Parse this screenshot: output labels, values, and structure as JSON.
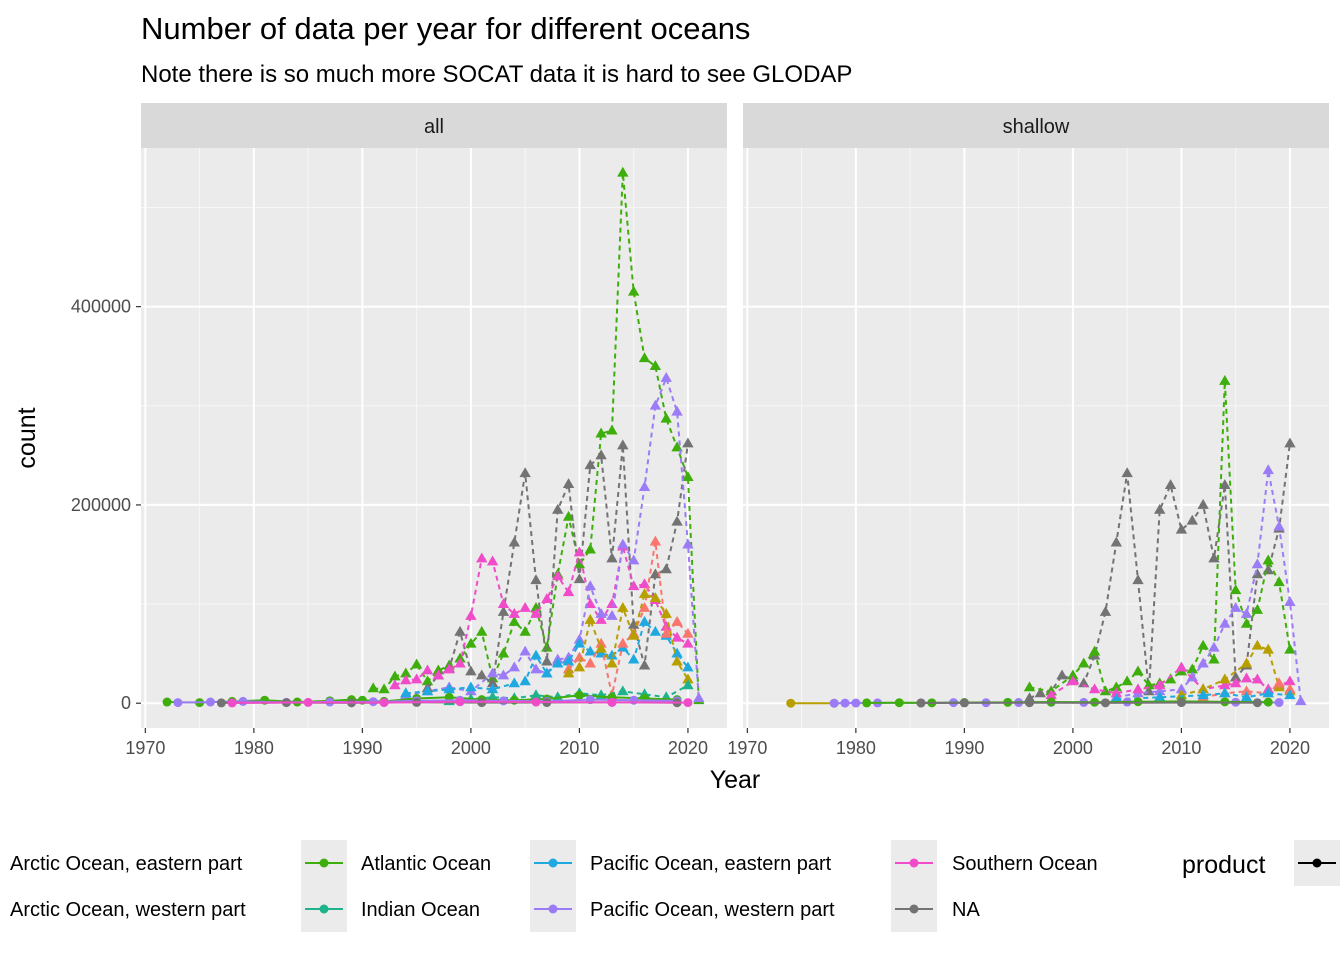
{
  "chart_data": {
    "type": "line",
    "title": "Number of data per year for different oceans",
    "subtitle": "Note there is so much more SOCAT data it is hard to see GLODAP",
    "xlabel": "Year",
    "ylabel": "count",
    "xlim": [
      1969.6,
      2023.6
    ],
    "ylim": [
      -25000,
      560000
    ],
    "x_ticks": [
      1970,
      1980,
      1990,
      2000,
      2010,
      2020
    ],
    "x_tick_labels": [
      "1970",
      "1980",
      "1990",
      "2000",
      "2010",
      "2020"
    ],
    "y_ticks": [
      0,
      200000,
      400000
    ],
    "y_tick_labels": [
      "0",
      "200000",
      "400000"
    ],
    "grid": true,
    "facets": [
      "all",
      "shallow"
    ],
    "legend": {
      "position": "bottom",
      "colour_entries": [
        {
          "name": "Arctic Ocean, eastern part",
          "color": "#F8766D"
        },
        {
          "name": "Arctic Ocean, western part",
          "color": "#B79F00"
        },
        {
          "name": "Atlantic Ocean",
          "color": "#3DAE0B"
        },
        {
          "name": "Indian Ocean",
          "color": "#1EB38C"
        },
        {
          "name": "Pacific Ocean, eastern part",
          "color": "#1FA9E0"
        },
        {
          "name": "Pacific Ocean, western part",
          "color": "#9C7CF6"
        },
        {
          "name": "Southern Ocean",
          "color": "#F04BC8"
        },
        {
          "name": "NA",
          "color": "#737373"
        }
      ],
      "product_title": "product"
    },
    "series": [
      {
        "name": "Atlantic Ocean",
        "facet": "all",
        "product": "dashed-triangle",
        "color": "#3DAE0B",
        "x": [
          1991,
          1992,
          1993,
          1994,
          1995,
          1996,
          1997,
          1998,
          1999,
          2000,
          2001,
          2002,
          2003,
          2004,
          2005,
          2006,
          2007,
          2008,
          2009,
          2010,
          2011,
          2012,
          2013,
          2014,
          2015,
          2016,
          2017,
          2018,
          2019,
          2020,
          2021
        ],
        "y": [
          15000,
          14000,
          27000,
          30000,
          39000,
          22000,
          33000,
          38000,
          45000,
          60000,
          72000,
          25000,
          50000,
          82000,
          72000,
          96000,
          56000,
          130000,
          188000,
          140000,
          155000,
          272000,
          275000,
          535000,
          415000,
          348000,
          340000,
          287000,
          258000,
          228000,
          3000
        ]
      },
      {
        "name": "NA",
        "facet": "all",
        "product": "dashed-triangle",
        "color": "#737373",
        "x": [
          1996,
          1997,
          1998,
          1999,
          2000,
          2001,
          2002,
          2003,
          2004,
          2005,
          2006,
          2007,
          2008,
          2009,
          2010,
          2011,
          2012,
          2013,
          2014,
          2015,
          2016,
          2017,
          2018,
          2019,
          2020
        ],
        "y": [
          15000,
          28000,
          35000,
          72000,
          32000,
          28000,
          20000,
          92000,
          162000,
          232000,
          124000,
          42000,
          195000,
          221000,
          125000,
          240000,
          250000,
          146000,
          260000,
          79000,
          38000,
          130000,
          135000,
          183000,
          262000
        ]
      },
      {
        "name": "Southern Ocean",
        "facet": "all",
        "product": "dashed-triangle",
        "color": "#F04BC8",
        "x": [
          1993,
          1994,
          1995,
          1996,
          1997,
          1998,
          1999,
          2000,
          2001,
          2002,
          2003,
          2004,
          2005,
          2006,
          2007,
          2008,
          2009,
          2010,
          2011,
          2012,
          2013,
          2014,
          2015,
          2016,
          2017,
          2018,
          2019,
          2020
        ],
        "y": [
          18000,
          23000,
          24000,
          33000,
          28000,
          34000,
          40000,
          88000,
          146000,
          143000,
          100000,
          90000,
          96000,
          90000,
          105000,
          128000,
          112000,
          152000,
          100000,
          84000,
          100000,
          158000,
          118000,
          120000,
          104000,
          77000,
          66000,
          60000
        ]
      },
      {
        "name": "Pacific Ocean, western part",
        "facet": "all",
        "product": "dashed-triangle",
        "color": "#9C7CF6",
        "x": [
          1994,
          1996,
          1998,
          2000,
          2002,
          2003,
          2004,
          2005,
          2006,
          2007,
          2008,
          2009,
          2010,
          2011,
          2012,
          2013,
          2014,
          2015,
          2016,
          2017,
          2018,
          2019,
          2020,
          2021
        ],
        "y": [
          8000,
          12000,
          16000,
          12000,
          30000,
          28000,
          36000,
          52000,
          34000,
          30000,
          44000,
          46000,
          64000,
          118000,
          90000,
          88000,
          160000,
          144000,
          218000,
          300000,
          328000,
          294000,
          160000,
          5000
        ]
      },
      {
        "name": "Pacific Ocean, eastern part",
        "facet": "all",
        "product": "dashed-triangle",
        "color": "#1FA9E0",
        "x": [
          1994,
          1996,
          1998,
          2000,
          2002,
          2004,
          2005,
          2006,
          2007,
          2008,
          2009,
          2010,
          2011,
          2012,
          2013,
          2014,
          2015,
          2016,
          2017,
          2018,
          2019,
          2020
        ],
        "y": [
          10000,
          12000,
          14000,
          16000,
          14000,
          20000,
          22000,
          48000,
          30000,
          40000,
          42000,
          60000,
          52000,
          50000,
          48000,
          56000,
          44000,
          82000,
          72000,
          68000,
          50000,
          36000
        ]
      },
      {
        "name": "Arctic Ocean, eastern part",
        "facet": "all",
        "product": "dashed-triangle",
        "color": "#F8766D",
        "x": [
          2009,
          2010,
          2011,
          2012,
          2013,
          2014,
          2015,
          2016,
          2017,
          2018,
          2019,
          2020
        ],
        "y": [
          34000,
          46000,
          40000,
          60000,
          8000,
          60000,
          70000,
          96000,
          163000,
          70000,
          82000,
          70000
        ]
      },
      {
        "name": "Arctic Ocean, western part",
        "facet": "all",
        "product": "dashed-triangle",
        "color": "#B79F00",
        "x": [
          2009,
          2010,
          2011,
          2012,
          2013,
          2014,
          2015,
          2016,
          2017,
          2018,
          2019,
          2020
        ],
        "y": [
          30000,
          36000,
          84000,
          55000,
          40000,
          96000,
          68000,
          110000,
          106000,
          90000,
          42000,
          24000
        ]
      },
      {
        "name": "Indian Ocean",
        "facet": "all",
        "product": "dashed-triangle",
        "color": "#1EB38C",
        "x": [
          1998,
          2000,
          2002,
          2004,
          2006,
          2008,
          2010,
          2012,
          2014,
          2016,
          2018,
          2020
        ],
        "y": [
          2000,
          4000,
          6000,
          5000,
          8000,
          6000,
          10000,
          8000,
          12000,
          9000,
          6000,
          18000
        ]
      },
      {
        "name": "Atlantic Ocean",
        "facet": "all",
        "product": "solid-point",
        "color": "#3DAE0B",
        "x": [
          1972,
          1975,
          1978,
          1981,
          1984,
          1987,
          1989,
          1990,
          1992,
          1995,
          1998,
          2001,
          2004,
          2007,
          2010,
          2013,
          2016,
          2019
        ],
        "y": [
          1200,
          600,
          1800,
          3000,
          1200,
          2400,
          3600,
          3000,
          1800,
          4800,
          6000,
          3600,
          3000,
          4200,
          8000,
          6000,
          4800,
          3600
        ]
      },
      {
        "name": "Pacific Ocean, western part",
        "facet": "all",
        "product": "solid-point",
        "color": "#9C7CF6",
        "x": [
          1973,
          1976,
          1979,
          1983,
          1987,
          1991,
          1995,
          1999,
          2003,
          2007,
          2011,
          2015,
          2019
        ],
        "y": [
          600,
          1200,
          1800,
          900,
          1200,
          1500,
          2400,
          3000,
          2400,
          1800,
          3600,
          3000,
          2400
        ]
      },
      {
        "name": "NA",
        "facet": "all",
        "product": "solid-point",
        "color": "#737373",
        "x": [
          1977,
          1983,
          1989,
          1995,
          2001,
          2007,
          2013,
          2019
        ],
        "y": [
          300,
          600,
          400,
          800,
          600,
          700,
          900,
          500
        ]
      },
      {
        "name": "Southern Ocean",
        "facet": "all",
        "product": "solid-point",
        "color": "#F04BC8",
        "x": [
          1978,
          1985,
          1992,
          1999,
          2006,
          2013,
          2020
        ],
        "y": [
          300,
          800,
          600,
          1500,
          1200,
          900,
          600
        ]
      },
      {
        "name": "NA",
        "facet": "shallow",
        "product": "dashed-triangle",
        "color": "#737373",
        "x": [
          1996,
          1997,
          1998,
          1999,
          2000,
          2001,
          2002,
          2003,
          2004,
          2005,
          2006,
          2007,
          2008,
          2009,
          2010,
          2011,
          2012,
          2013,
          2014,
          2015,
          2016,
          2017,
          2018,
          2019,
          2020
        ],
        "y": [
          5000,
          10000,
          12000,
          28000,
          24000,
          20000,
          48000,
          92000,
          162000,
          232000,
          124000,
          12000,
          195000,
          220000,
          175000,
          184000,
          200000,
          146000,
          220000,
          26000,
          38000,
          130000,
          134000,
          176000,
          262000
        ]
      },
      {
        "name": "Atlantic Ocean",
        "facet": "shallow",
        "product": "dashed-triangle",
        "color": "#3DAE0B",
        "x": [
          1996,
          1998,
          2000,
          2001,
          2002,
          2003,
          2004,
          2005,
          2006,
          2007,
          2008,
          2009,
          2010,
          2011,
          2012,
          2013,
          2014,
          2015,
          2016,
          2017,
          2018,
          2019,
          2020
        ],
        "y": [
          16000,
          12000,
          28000,
          40000,
          52000,
          12000,
          16000,
          22000,
          32000,
          18000,
          20000,
          24000,
          32000,
          34000,
          58000,
          44000,
          325000,
          114000,
          80000,
          94000,
          144000,
          122000,
          54000
        ]
      },
      {
        "name": "Pacific Ocean, western part",
        "facet": "shallow",
        "product": "dashed-triangle",
        "color": "#9C7CF6",
        "x": [
          2004,
          2006,
          2008,
          2010,
          2011,
          2012,
          2013,
          2014,
          2015,
          2016,
          2017,
          2018,
          2019,
          2020,
          2021
        ],
        "y": [
          6000,
          10000,
          12000,
          14000,
          26000,
          40000,
          56000,
          80000,
          96000,
          90000,
          140000,
          235000,
          178000,
          102000,
          2000
        ]
      },
      {
        "name": "Southern Ocean",
        "facet": "shallow",
        "product": "dashed-triangle",
        "color": "#F04BC8",
        "x": [
          1998,
          2000,
          2002,
          2004,
          2006,
          2008,
          2010,
          2012,
          2014,
          2015,
          2016,
          2017,
          2018,
          2019,
          2020
        ],
        "y": [
          8000,
          22000,
          14000,
          10000,
          14000,
          18000,
          36000,
          14000,
          18000,
          20000,
          25000,
          24000,
          14000,
          18000,
          22000
        ]
      },
      {
        "name": "Arctic Ocean, western part",
        "facet": "shallow",
        "product": "dashed-triangle",
        "color": "#B79F00",
        "x": [
          2010,
          2012,
          2014,
          2016,
          2017,
          2018,
          2019,
          2020
        ],
        "y": [
          8000,
          14000,
          24000,
          40000,
          58000,
          54000,
          16000,
          12000
        ]
      },
      {
        "name": "Arctic Ocean, eastern part",
        "facet": "shallow",
        "product": "dashed-triangle",
        "color": "#F8766D",
        "x": [
          2012,
          2014,
          2016,
          2018,
          2019,
          2020
        ],
        "y": [
          6000,
          10000,
          12000,
          10000,
          20000,
          14000
        ]
      },
      {
        "name": "Pacific Ocean, eastern part",
        "facet": "shallow",
        "product": "dashed-triangle",
        "color": "#1FA9E0",
        "x": [
          2004,
          2008,
          2012,
          2014,
          2016,
          2018,
          2020
        ],
        "y": [
          4000,
          6000,
          8000,
          10000,
          6000,
          10000,
          8000
        ]
      },
      {
        "name": "Arctic Ocean, western part",
        "facet": "shallow",
        "product": "solid-point",
        "color": "#B79F00",
        "x": [
          1974,
          1978
        ],
        "y": [
          0,
          0
        ]
      },
      {
        "name": "Pacific Ocean, western part",
        "facet": "shallow",
        "product": "solid-point",
        "color": "#9C7CF6",
        "x": [
          1978,
          1979,
          1980,
          1982,
          1986,
          1989,
          1992,
          1995,
          1998,
          2001,
          2005,
          2010,
          2015,
          2019
        ],
        "y": [
          0,
          100,
          200,
          300,
          400,
          600,
          500,
          700,
          900,
          800,
          1200,
          1500,
          1000,
          700
        ]
      },
      {
        "name": "Atlantic Ocean",
        "facet": "shallow",
        "product": "solid-point",
        "color": "#3DAE0B",
        "x": [
          1981,
          1984,
          1987,
          1990,
          1994,
          1998,
          2002,
          2006,
          2010,
          2014,
          2018
        ],
        "y": [
          300,
          500,
          400,
          700,
          900,
          1200,
          1000,
          1500,
          1800,
          1400,
          1100
        ]
      },
      {
        "name": "NA",
        "facet": "shallow",
        "product": "solid-point",
        "color": "#737373",
        "x": [
          1986,
          1990,
          1996,
          2003,
          2010,
          2017
        ],
        "y": [
          200,
          300,
          500,
          400,
          600,
          500
        ]
      }
    ]
  }
}
